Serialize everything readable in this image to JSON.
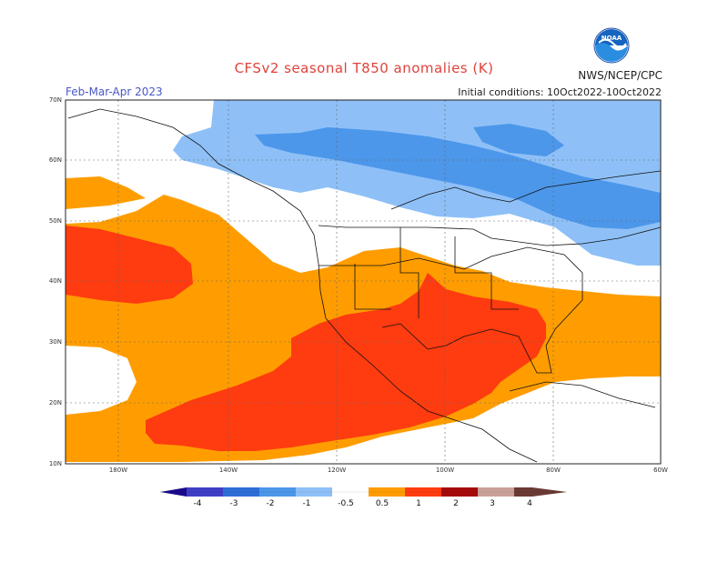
{
  "header": {
    "title": "CFSv2 seasonal T850 anomalies (K)",
    "season": "Feb-Mar-Apr 2023",
    "initial_conditions": "Initial conditions: 10Oct2022-10Oct2022",
    "agency": "NWS/NCEP/CPC",
    "logo_text": "NOAA"
  },
  "map": {
    "region": "North America and Eastern Pacific",
    "lat_labels": [
      "70N",
      "60N",
      "50N",
      "40N",
      "30N",
      "20N",
      "10N"
    ],
    "lon_labels": [
      "180W",
      "140W",
      "120W",
      "100W",
      "80W",
      "60W"
    ]
  },
  "colorbar": {
    "labels": [
      "-4",
      "-3",
      "-2",
      "-1",
      "-0.5",
      "0.5",
      "1",
      "2",
      "3",
      "4"
    ],
    "colors": {
      "lt_-4": "#1a0a8a",
      "-4_-3": "#3f3fc6",
      "-3_-2": "#2e6fd6",
      "-2_-1": "#4c97ea",
      "-1_-0.5": "#8ec0f7",
      "-0.5_0.5": "#ffffff",
      "0.5_1": "#ff9d00",
      "1_2": "#ff3b10",
      "2_3": "#a60b0b",
      "3_4": "#c9a098",
      "gt_4": "#6b3a34"
    }
  }
}
